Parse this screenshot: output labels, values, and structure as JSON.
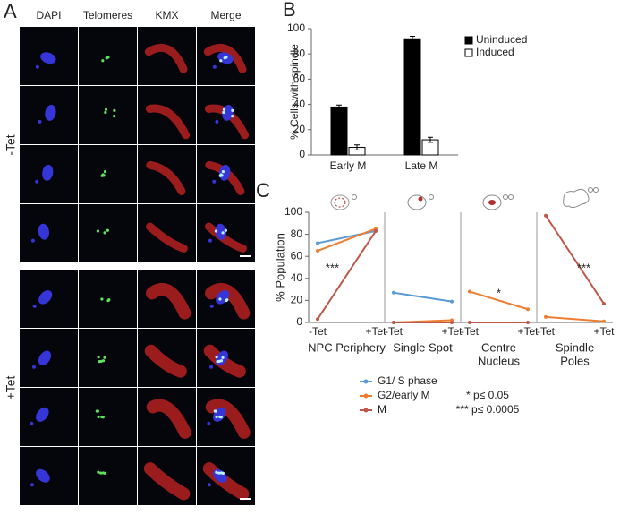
{
  "panel_labels": [
    "A",
    "B",
    "C"
  ],
  "microscopy": {
    "columns": [
      "DAPI",
      "Telomeres",
      "KMX",
      "Merge"
    ],
    "groups": [
      "-Tet",
      "+Tet"
    ]
  },
  "chart_data": [
    {
      "type": "bar",
      "ylabel": "% Cells with spindle",
      "categories": [
        "Early M",
        "Late M"
      ],
      "series": [
        {
          "name": "Uninduced",
          "color": "#000000",
          "values": [
            38,
            92
          ],
          "errors": [
            1.5,
            2
          ]
        },
        {
          "name": "Induced",
          "color": "#ffffff",
          "values": [
            6,
            12
          ],
          "errors": [
            2,
            2
          ]
        }
      ],
      "ylim": [
        0,
        100
      ],
      "yticks": [
        0,
        20,
        40,
        60,
        80,
        100
      ],
      "legend": "upper right"
    },
    {
      "type": "line",
      "ylabel": "% Population",
      "categories": [
        "-Tet",
        "+Tet"
      ],
      "panels": [
        [
          "NPC Periphery"
        ],
        [
          "Single Spot"
        ],
        [
          "Centre",
          "Nucleus"
        ],
        [
          "Spindle",
          "Poles"
        ]
      ],
      "annotations": [
        "***",
        null,
        "*",
        "***"
      ],
      "series": [
        {
          "name": "G1/ S phase",
          "color": "#5b9bd5",
          "values": [
            [
              72,
              83
            ],
            [
              27,
              19
            ],
            [
              null,
              null
            ],
            [
              null,
              null
            ]
          ]
        },
        {
          "name": "G2/early M",
          "color": "#ed7d31",
          "values": [
            [
              65,
              85
            ],
            [
              0,
              2
            ],
            [
              28,
              12
            ],
            [
              5,
              1
            ]
          ]
        },
        {
          "name": "M",
          "color": "#c0584a",
          "values": [
            [
              3,
              83
            ],
            [
              0,
              0
            ],
            [
              0,
              0
            ],
            [
              97,
              17
            ]
          ]
        }
      ],
      "significance": [
        "* p≤ 0.05",
        "*** p≤ 0.0005"
      ],
      "ylim": [
        0,
        100
      ],
      "yticks": [
        0,
        20,
        40,
        60,
        80,
        100
      ]
    }
  ]
}
